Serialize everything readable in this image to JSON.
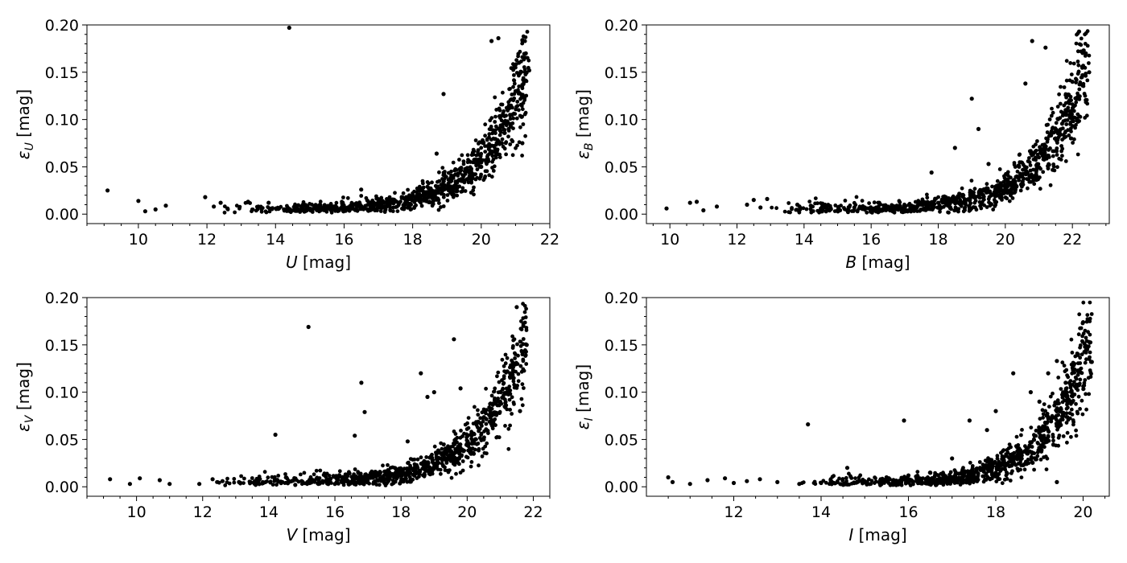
{
  "chart_data": [
    {
      "type": "scatter",
      "xlabel": {
        "symbol": "U",
        "unit": " [mag]"
      },
      "ylabel": {
        "symbol": "ε",
        "sub": "U",
        "unit": " [mag]"
      },
      "xlim": [
        8.5,
        22
      ],
      "ylim": [
        -0.01,
        0.2
      ],
      "xticks": [
        10,
        12,
        14,
        16,
        18,
        20,
        22
      ],
      "yticks": [
        0.0,
        0.05,
        0.1,
        0.15,
        0.2
      ],
      "ytick_labels": [
        "0.00",
        "0.05",
        "0.10",
        "0.15",
        "0.20"
      ],
      "xtick_labels": [
        "10",
        "12",
        "14",
        "16",
        "18",
        "20",
        "22"
      ],
      "points": [
        [
          9.1,
          0.025
        ],
        [
          10.0,
          0.014
        ],
        [
          10.2,
          0.003
        ],
        [
          10.5,
          0.005
        ],
        [
          10.8,
          0.009
        ],
        [
          11.95,
          0.018
        ],
        [
          12.2,
          0.008
        ],
        [
          12.4,
          0.012
        ],
        [
          12.6,
          0.006
        ],
        [
          13.2,
          0.013
        ],
        [
          13.5,
          0.008
        ],
        [
          13.8,
          0.012
        ],
        [
          14.1,
          0.006
        ],
        [
          14.4,
          0.197
        ],
        [
          14.6,
          0.004
        ],
        [
          15.0,
          0.006
        ],
        [
          15.3,
          0.01
        ],
        [
          15.6,
          0.005
        ],
        [
          16.0,
          0.008
        ],
        [
          16.5,
          0.026
        ],
        [
          17.0,
          0.01
        ],
        [
          17.5,
          0.014
        ],
        [
          18.0,
          0.02
        ],
        [
          18.5,
          0.025
        ],
        [
          18.7,
          0.064
        ],
        [
          18.9,
          0.127
        ],
        [
          19.2,
          0.028
        ],
        [
          19.5,
          0.035
        ],
        [
          19.8,
          0.042
        ],
        [
          20.0,
          0.05
        ],
        [
          20.2,
          0.058
        ],
        [
          20.3,
          0.183
        ],
        [
          20.5,
          0.186
        ],
        [
          20.6,
          0.075
        ],
        [
          20.8,
          0.09
        ],
        [
          20.9,
          0.105
        ],
        [
          21.0,
          0.13
        ],
        [
          21.1,
          0.16
        ],
        [
          21.2,
          0.184
        ],
        [
          21.3,
          0.17
        ],
        [
          21.4,
          0.152
        ],
        [
          21.2,
          0.075
        ]
      ]
    },
    {
      "type": "scatter",
      "xlabel": {
        "symbol": "B",
        "unit": " [mag]"
      },
      "ylabel": {
        "symbol": "ε",
        "sub": "B",
        "unit": " [mag]"
      },
      "xlim": [
        9.3,
        23.1
      ],
      "ylim": [
        -0.01,
        0.2
      ],
      "xticks": [
        10,
        12,
        14,
        16,
        18,
        20,
        22
      ],
      "yticks": [
        0.0,
        0.05,
        0.1,
        0.15,
        0.2
      ],
      "ytick_labels": [
        "0.00",
        "0.05",
        "0.10",
        "0.15",
        "0.20"
      ],
      "xtick_labels": [
        "10",
        "12",
        "14",
        "16",
        "18",
        "20",
        "22"
      ],
      "points": [
        [
          9.9,
          0.006
        ],
        [
          10.6,
          0.012
        ],
        [
          10.8,
          0.013
        ],
        [
          11.0,
          0.004
        ],
        [
          11.4,
          0.008
        ],
        [
          12.3,
          0.01
        ],
        [
          12.5,
          0.015
        ],
        [
          12.7,
          0.007
        ],
        [
          12.9,
          0.016
        ],
        [
          13.8,
          0.01
        ],
        [
          14.2,
          0.009
        ],
        [
          14.5,
          0.006
        ],
        [
          15.0,
          0.004
        ],
        [
          15.5,
          0.007
        ],
        [
          16.0,
          0.005
        ],
        [
          16.5,
          0.008
        ],
        [
          17.0,
          0.006
        ],
        [
          17.5,
          0.01
        ],
        [
          17.8,
          0.044
        ],
        [
          18.0,
          0.012
        ],
        [
          18.5,
          0.07
        ],
        [
          19.0,
          0.122
        ],
        [
          19.2,
          0.09
        ],
        [
          19.5,
          0.053
        ],
        [
          20.0,
          0.03
        ],
        [
          20.5,
          0.04
        ],
        [
          20.6,
          0.138
        ],
        [
          20.8,
          0.183
        ],
        [
          21.0,
          0.06
        ],
        [
          21.2,
          0.176
        ],
        [
          21.5,
          0.08
        ],
        [
          21.8,
          0.11
        ],
        [
          22.0,
          0.14
        ],
        [
          22.2,
          0.193
        ],
        [
          22.4,
          0.17
        ],
        [
          22.5,
          0.15
        ]
      ]
    },
    {
      "type": "scatter",
      "xlabel": {
        "symbol": "V",
        "unit": " [mag]"
      },
      "ylabel": {
        "symbol": "ε",
        "sub": "V",
        "unit": " [mag]"
      },
      "xlim": [
        8.5,
        22.5
      ],
      "ylim": [
        -0.01,
        0.2
      ],
      "xticks": [
        10,
        12,
        14,
        16,
        18,
        20,
        22
      ],
      "yticks": [
        0.0,
        0.05,
        0.1,
        0.15,
        0.2
      ],
      "ytick_labels": [
        "0.00",
        "0.05",
        "0.10",
        "0.15",
        "0.20"
      ],
      "xtick_labels": [
        "10",
        "12",
        "14",
        "16",
        "18",
        "20",
        "22"
      ],
      "points": [
        [
          9.2,
          0.008
        ],
        [
          9.8,
          0.003
        ],
        [
          10.1,
          0.009
        ],
        [
          10.7,
          0.007
        ],
        [
          11.0,
          0.003
        ],
        [
          11.9,
          0.003
        ],
        [
          12.3,
          0.008
        ],
        [
          12.6,
          0.006
        ],
        [
          13.1,
          0.005
        ],
        [
          13.6,
          0.006
        ],
        [
          14.2,
          0.055
        ],
        [
          14.8,
          0.002
        ],
        [
          15.2,
          0.169
        ],
        [
          15.5,
          0.003
        ],
        [
          16.0,
          0.003
        ],
        [
          16.6,
          0.054
        ],
        [
          16.8,
          0.11
        ],
        [
          16.9,
          0.079
        ],
        [
          17.5,
          0.004
        ],
        [
          18.0,
          0.006
        ],
        [
          18.2,
          0.048
        ],
        [
          18.6,
          0.12
        ],
        [
          18.8,
          0.095
        ],
        [
          19.0,
          0.1
        ],
        [
          19.4,
          0.03
        ],
        [
          19.6,
          0.156
        ],
        [
          19.8,
          0.104
        ],
        [
          20.2,
          0.035
        ],
        [
          20.5,
          0.05
        ],
        [
          20.8,
          0.07
        ],
        [
          21.0,
          0.09
        ],
        [
          21.3,
          0.12
        ],
        [
          21.5,
          0.19
        ],
        [
          21.7,
          0.17
        ],
        [
          21.8,
          0.15
        ],
        [
          21.6,
          0.08
        ]
      ]
    },
    {
      "type": "scatter",
      "xlabel": {
        "symbol": "I",
        "unit": " [mag]"
      },
      "ylabel": {
        "symbol": "ε",
        "sub": "I",
        "unit": " [mag]"
      },
      "xlim": [
        10.0,
        20.6
      ],
      "ylim": [
        -0.01,
        0.2
      ],
      "xticks": [
        12,
        14,
        16,
        18,
        20
      ],
      "yticks": [
        0.0,
        0.05,
        0.1,
        0.15,
        0.2
      ],
      "ytick_labels": [
        "0.00",
        "0.05",
        "0.10",
        "0.15",
        "0.20"
      ],
      "xtick_labels": [
        "12",
        "14",
        "16",
        "18",
        "20"
      ],
      "points": [
        [
          10.5,
          0.01
        ],
        [
          10.6,
          0.005
        ],
        [
          11.0,
          0.003
        ],
        [
          11.4,
          0.007
        ],
        [
          11.8,
          0.009
        ],
        [
          12.0,
          0.004
        ],
        [
          12.3,
          0.006
        ],
        [
          12.6,
          0.008
        ],
        [
          13.0,
          0.005
        ],
        [
          13.5,
          0.003
        ],
        [
          13.7,
          0.066
        ],
        [
          14.0,
          0.004
        ],
        [
          14.6,
          0.02
        ],
        [
          15.0,
          0.006
        ],
        [
          15.5,
          0.01
        ],
        [
          15.9,
          0.07
        ],
        [
          16.0,
          0.012
        ],
        [
          16.5,
          0.015
        ],
        [
          17.0,
          0.03
        ],
        [
          17.4,
          0.07
        ],
        [
          17.8,
          0.06
        ],
        [
          18.0,
          0.08
        ],
        [
          18.4,
          0.12
        ],
        [
          18.8,
          0.1
        ],
        [
          19.0,
          0.09
        ],
        [
          19.2,
          0.12
        ],
        [
          19.4,
          0.133
        ],
        [
          19.6,
          0.11
        ],
        [
          19.8,
          0.13
        ],
        [
          20.0,
          0.174
        ],
        [
          20.2,
          0.132
        ],
        [
          19.4,
          0.005
        ]
      ]
    }
  ]
}
